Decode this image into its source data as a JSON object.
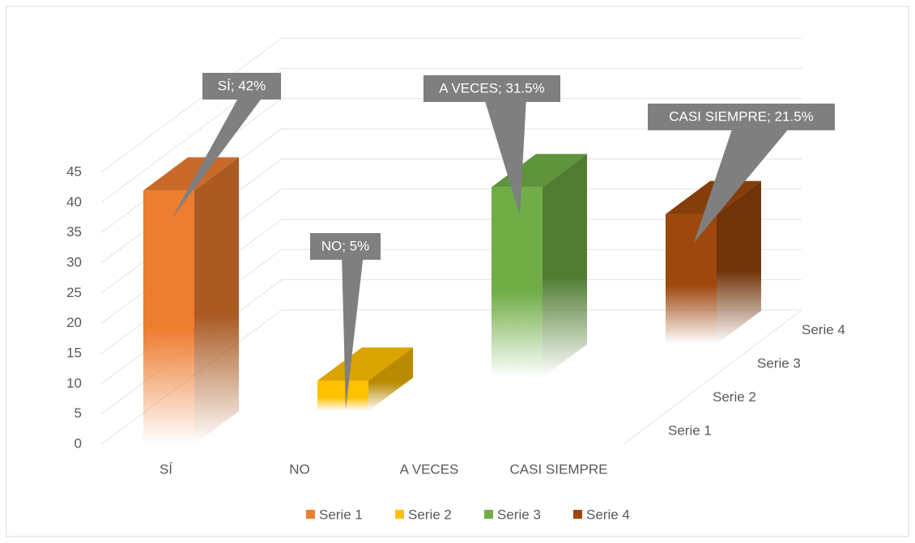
{
  "chart_data": {
    "type": "bar3d",
    "categories": [
      "SÍ",
      "NO",
      "A VECES",
      "CASI SIEMPRE"
    ],
    "series": [
      {
        "name": "Serie 1",
        "color": "#ed7d31",
        "values": [
          42,
          null,
          null,
          null
        ],
        "value_labels": [
          "SÍ; 42%",
          null,
          null,
          null
        ]
      },
      {
        "name": "Serie 2",
        "color": "#ffc000",
        "values": [
          null,
          5,
          null,
          null
        ],
        "value_labels": [
          null,
          "NO; 5%",
          null,
          null
        ]
      },
      {
        "name": "Serie 3",
        "color": "#70ad47",
        "values": [
          null,
          null,
          31.5,
          null
        ],
        "value_labels": [
          null,
          null,
          "A VECES; 31.5%",
          null
        ]
      },
      {
        "name": "Serie 4",
        "color": "#9e480e",
        "values": [
          null,
          null,
          null,
          21.5
        ],
        "value_labels": [
          null,
          null,
          null,
          "CASI SIEMPRE; 21.5%"
        ]
      }
    ],
    "ylim": [
      0,
      45
    ],
    "yticks": [
      0,
      5,
      10,
      15,
      20,
      25,
      30,
      35,
      40,
      45
    ],
    "grid": true,
    "legend": "bottom"
  }
}
